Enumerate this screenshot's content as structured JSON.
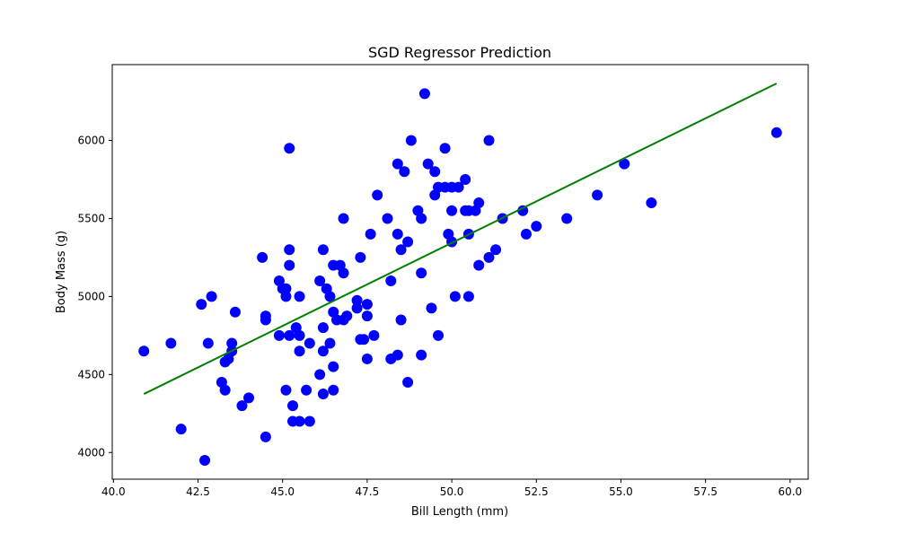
{
  "chart_data": {
    "type": "scatter",
    "title": "SGD Regressor Prediction",
    "xlabel": "Bill Length (mm)",
    "ylabel": "Body Mass (g)",
    "xlim": [
      39.965,
      60.535
    ],
    "ylim": [
      3829,
      6486
    ],
    "xticks": [
      40.0,
      42.5,
      45.0,
      47.5,
      50.0,
      52.5,
      55.0,
      57.5,
      60.0
    ],
    "xtick_labels": [
      "40.0",
      "42.5",
      "45.0",
      "47.5",
      "50.0",
      "52.5",
      "55.0",
      "57.5",
      "60.0"
    ],
    "yticks": [
      4000,
      4500,
      5000,
      5500,
      6000
    ],
    "ytick_labels": [
      "4000",
      "4500",
      "5000",
      "5500",
      "6000"
    ],
    "grid": false,
    "colors": {
      "points": "#0000ff",
      "line": "#008000"
    },
    "regression_line": {
      "x": [
        40.9,
        59.6
      ],
      "y": [
        4375,
        6365
      ]
    },
    "points": [
      [
        40.9,
        4650
      ],
      [
        41.7,
        4700
      ],
      [
        42.0,
        4150
      ],
      [
        42.6,
        4950
      ],
      [
        42.7,
        3950
      ],
      [
        42.8,
        4700
      ],
      [
        42.9,
        5000
      ],
      [
        43.2,
        4450
      ],
      [
        43.3,
        4400
      ],
      [
        43.3,
        4580
      ],
      [
        43.4,
        4600
      ],
      [
        43.5,
        4650
      ],
      [
        43.5,
        4700
      ],
      [
        43.6,
        4900
      ],
      [
        43.8,
        4300
      ],
      [
        44.0,
        4350
      ],
      [
        44.4,
        5250
      ],
      [
        44.5,
        4850
      ],
      [
        44.5,
        4875
      ],
      [
        44.5,
        4100
      ],
      [
        44.9,
        5100
      ],
      [
        44.9,
        4750
      ],
      [
        45.0,
        5050
      ],
      [
        45.1,
        5050
      ],
      [
        45.1,
        5000
      ],
      [
        45.1,
        4400
      ],
      [
        45.2,
        5950
      ],
      [
        45.2,
        5300
      ],
      [
        45.2,
        5200
      ],
      [
        45.2,
        4750
      ],
      [
        45.3,
        4300
      ],
      [
        45.3,
        4200
      ],
      [
        45.4,
        4800
      ],
      [
        45.5,
        5000
      ],
      [
        45.5,
        4750
      ],
      [
        45.5,
        4650
      ],
      [
        45.5,
        4200
      ],
      [
        45.7,
        4400
      ],
      [
        45.8,
        4700
      ],
      [
        45.8,
        4200
      ],
      [
        46.1,
        5100
      ],
      [
        46.1,
        4500
      ],
      [
        46.2,
        5300
      ],
      [
        46.2,
        4800
      ],
      [
        46.2,
        4650
      ],
      [
        46.2,
        4375
      ],
      [
        46.3,
        5050
      ],
      [
        46.4,
        5000
      ],
      [
        46.4,
        4700
      ],
      [
        46.5,
        5200
      ],
      [
        46.5,
        4900
      ],
      [
        46.5,
        4550
      ],
      [
        46.5,
        4400
      ],
      [
        46.6,
        4850
      ],
      [
        46.7,
        5200
      ],
      [
        46.8,
        5150
      ],
      [
        46.8,
        5500
      ],
      [
        46.8,
        4850
      ],
      [
        46.9,
        4875
      ],
      [
        47.2,
        4975
      ],
      [
        47.2,
        4925
      ],
      [
        47.3,
        5250
      ],
      [
        47.3,
        4725
      ],
      [
        47.4,
        4725
      ],
      [
        47.5,
        4950
      ],
      [
        47.5,
        4875
      ],
      [
        47.5,
        4600
      ],
      [
        47.6,
        5400
      ],
      [
        47.7,
        4750
      ],
      [
        47.8,
        5650
      ],
      [
        48.1,
        5500
      ],
      [
        48.2,
        5100
      ],
      [
        48.2,
        4600
      ],
      [
        48.4,
        5850
      ],
      [
        48.4,
        5400
      ],
      [
        48.4,
        4625
      ],
      [
        48.5,
        5300
      ],
      [
        48.5,
        4850
      ],
      [
        48.6,
        5800
      ],
      [
        48.7,
        5350
      ],
      [
        48.7,
        4450
      ],
      [
        48.8,
        6000
      ],
      [
        49.0,
        5550
      ],
      [
        49.1,
        5500
      ],
      [
        49.1,
        5150
      ],
      [
        49.1,
        4625
      ],
      [
        49.2,
        6300
      ],
      [
        49.3,
        5850
      ],
      [
        49.4,
        4925
      ],
      [
        49.5,
        5800
      ],
      [
        49.5,
        5650
      ],
      [
        49.6,
        5700
      ],
      [
        49.6,
        4750
      ],
      [
        49.8,
        5950
      ],
      [
        49.8,
        5700
      ],
      [
        49.9,
        5400
      ],
      [
        50.0,
        5700
      ],
      [
        50.0,
        5550
      ],
      [
        50.0,
        5350
      ],
      [
        50.1,
        5000
      ],
      [
        50.2,
        5700
      ],
      [
        50.4,
        5750
      ],
      [
        50.4,
        5550
      ],
      [
        50.5,
        5550
      ],
      [
        50.5,
        5400
      ],
      [
        50.5,
        5000
      ],
      [
        50.7,
        5550
      ],
      [
        50.8,
        5600
      ],
      [
        50.8,
        5200
      ],
      [
        51.1,
        6000
      ],
      [
        51.1,
        5250
      ],
      [
        51.3,
        5300
      ],
      [
        51.5,
        5500
      ],
      [
        52.1,
        5550
      ],
      [
        52.2,
        5400
      ],
      [
        52.5,
        5450
      ],
      [
        53.4,
        5500
      ],
      [
        54.3,
        5650
      ],
      [
        55.1,
        5850
      ],
      [
        55.9,
        5600
      ],
      [
        59.6,
        6050
      ]
    ]
  }
}
